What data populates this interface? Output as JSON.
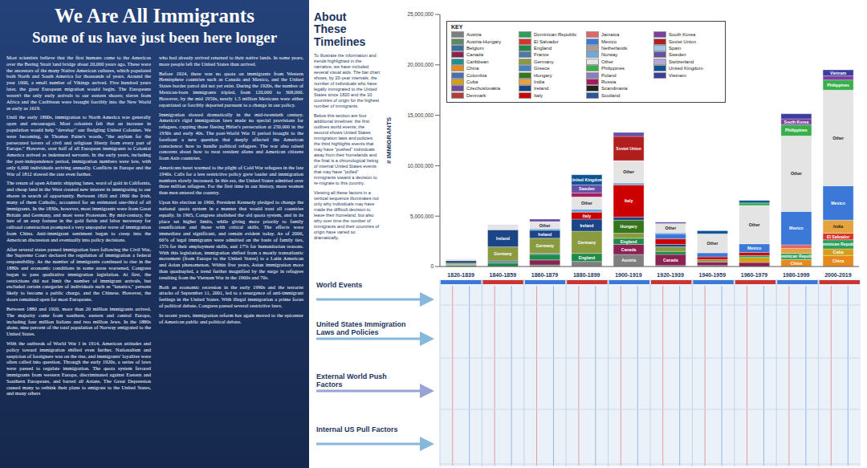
{
  "article": {
    "title": "We Are All Immigrants",
    "subtitle": "Some of us have just been here longer",
    "columns": [
      [
        "Most scientists believe that the first humans came to the Americas over the Bering Strait land bridge about 20,000 years ago. These were the ancestors of the many Native American cultures, which populated both North and South America for thousands of years. Around the year 1000, a small number of Vikings arrived. Five hundred years later, the great European migration would begin. The Europeans weren't the only early arrivals to our eastern shores; slaves from Africa and the Caribbean were brought forcibly into the New World as early as 1619.",
        "Until the early 1800s, immigration to North America was generally open and encouraged. Most colonists felt that an increase in population would help \"develop\" our fledgling United Colonies. We were becoming, in Thomas Paine's words, \"the asylum for the persecuted lovers of civil and religious liberty from every part of Europe.\" However, over half of all European immigrants to Colonial America arrived as indentured servants. In the early years, including the post-independence period, immigration numbers were low, with only 6,000 individuals arriving annually. Conflicts in Europe and the War of 1812 slowed the rate even further.",
        "The return of open Atlantic shipping lanes, word of gold in California, and cheap land in the West created new interest in immigrating to our shores in search of opportunity. Between 1820 and 1860 the Irish, many of them Catholic, accounted for an estimated one-third of all immigrants. In the 1830s, however, most immigrants were from Great Britain and Germany, and most were Protestant. By mid-century, the lure of an easy fortune in the gold fields and labor necessary for railroad construction prompted a very unpopular wave of immigration from China. Anti-immigrant sentiment began to creep into the American discussion and eventually into policy decisions.",
        "After several states passed immigration laws following the Civil War, the Supreme Court declared the regulation of immigration a federal responsibility. As the number of immigrants continued to rise in the 1880s and economic conditions in some areas worsened, Congress began to pass qualitative immigration legislation. At first, the restrictions did not limit the number of immigrant arrivals, but excluded certain categories of individuals such as \"lunatics,\" persons likely to become a public charge, and the Chinese. However, the doors remained open for most Europeans.",
        "Between 1880 and 1920, more than 20 million immigrants arrived. The majority came from southern, eastern and central Europe, including four million Italians and two million Jews. In the 1880s alone, nine percent of the total population of Norway emigrated to the United States.",
        "With the outbreak of World War I in 1914, American attitudes and policy toward immigration shifted even further. Nationalism and suspicion of foreigners was on the rise, and immigrants' loyalties were often called into question. Through the early 1920s, a series of laws were passed to regulate immigration. The quota system favored immigrants from western Europe, discriminated against Eastern and Southern Europeans, and barred all Asians. The Great Depression caused many to rethink their plans to emigrate to the United States, and many others"
      ],
      [
        "who had already arrived returned to their native lands. In some years, more people left the United States than arrived.",
        "Before 1924, there was no quota on immigrants from Western Hemisphere countries such as Canada and Mexico, and the United States border patrol did not yet exist. During the 1920s, the number of Mexican-born immigrants tripled, from 120,000 to 368,000. However, by the mid 1950s, nearly 1.5 million Mexicans were either repatriated or forcibly deported pursuant to a change in our policy.",
        "Immigration slowed dramatically in the mid-twentieth century. America's rigid immigration laws made no special provisions for refugees, capping those fleeing Hitler's persecution at 250,000 in the 1930s and early 40s. The post-World War II period brought to the forefront a new question that deeply affected the American conscience: how to handle political refugees. The war also raised concerns about how to treat resident aliens and American citizens from Axis countries.",
        "Americans heart warmed to the plight of Cold War refugees in the late 1940s. Calls for a less restrictive policy grew louder and immigration numbers slowly increased. In this era, the United States admitted over three million refugees. For the first time in our history, more women than men entered the country.",
        "Upon his election in 1960, President Kennedy pledged to change the national quota system in a manner that would treat all countries equally. In 1965, Congress abolished the old quota system, and in its place set higher limits, while giving more priority to family reunification and those with critical skills. The effects were immediate and significant, and remain evident today. As of 2006, 66% of legal immigrants were admitted on the basis of family ties, 15% for their employment skills, and 17% for humanitarian reasons. With this legislation, immigration shifted from a mostly transatlantic movement (from Europe to the United States) to a Latin American and Asian phenomenon. Within five years, Asian immigration more than quadrupled, a trend further magnified by the surge in refugees resulting from the Vietnam War in the 1960s and 70s.",
        "Both an economic recession in the early 1990s and the terrorist attacks of September 11, 2001, led to a resurgence of anti-immigrant feelings in the United States. With illegal immigration a prime focus of political debate, Congress passed several restrictive laws.",
        "In recent years, immigration reform has again moved to the epicenter of American public and political debate."
      ]
    ]
  },
  "about": {
    "title": "About These Timelines",
    "paragraphs": [
      "To illustrate the information and trends highlighted in the narrative, we have included several visual aids. The bar chart shows, by 20-year intervals, the number of individuals who have legally immigrated to the United States since 1820 and the 10 countries of origin for the highest number of immigrants.",
      "Below this section are four additional timelines: the first outlines world events; the second shows United States immigration laws and policies; the third highlights events that may have \"pushed\" individuals away from their homelands and the final is a chronological listing of internal United States events that may have \"pulled\" immigrants toward a decision to re-migrate to this country.",
      "Viewing all these factors in a vertical sequence illuminates not only why individuals may have made the difficult decision to leave their homeland, but also why over time the number of immigrants and their countries of origin have varied so dramatically."
    ]
  },
  "chart_data": {
    "type": "bar",
    "stacked": true,
    "grid": false,
    "legend_title": "KEY",
    "y_label": "# IMMIGRANTS",
    "categories": [
      "1820-1839",
      "1840-1859",
      "1860-1879",
      "1880-1899",
      "1900-1919",
      "1920-1939",
      "1940-1959",
      "1960-1979",
      "1980-1999",
      "2000-2019"
    ],
    "ylim": [
      0,
      25000000
    ],
    "yticks": [
      0,
      {
        "value": 5000000,
        "label": "5,000,000"
      },
      {
        "value": 10000000,
        "label": "10,000,000"
      },
      {
        "value": 15000000,
        "label": "15,000,000"
      },
      {
        "value": 20000000,
        "label": "20,000,000"
      },
      {
        "value": 25000000,
        "label": "25,000,000"
      }
    ],
    "series": [
      {
        "name": "Austria",
        "color": "#7f7f7f",
        "values": [
          null,
          null,
          null,
          500000,
          1200000,
          100000,
          100000,
          null,
          null,
          null
        ]
      },
      {
        "name": "Austria-Hungary",
        "color": "#5a8a6a",
        "values": [
          null,
          null,
          150000,
          null,
          null,
          null,
          null,
          null,
          null,
          null
        ]
      },
      {
        "name": "Belgium",
        "color": "#3a6e9e",
        "values": [
          null,
          null,
          null,
          null,
          null,
          null,
          null,
          null,
          null,
          null
        ]
      },
      {
        "name": "Canada",
        "color": "#8b2252",
        "values": [
          null,
          null,
          500000,
          null,
          1000000,
          1100000,
          350000,
          400000,
          null,
          null
        ]
      },
      {
        "name": "Caribbean",
        "color": "#1f8f8f",
        "values": [
          null,
          null,
          null,
          null,
          null,
          null,
          null,
          null,
          null,
          null
        ]
      },
      {
        "name": "China",
        "color": "#e8891c",
        "values": [
          null,
          null,
          null,
          null,
          null,
          null,
          null,
          null,
          700000,
          1100000
        ]
      },
      {
        "name": "Colombia",
        "color": "#4b6fb5",
        "values": [
          null,
          null,
          null,
          null,
          null,
          null,
          null,
          null,
          null,
          null
        ]
      },
      {
        "name": "Cuba",
        "color": "#d4a017",
        "values": [
          null,
          null,
          null,
          null,
          null,
          null,
          null,
          500000,
          null,
          650000
        ]
      },
      {
        "name": "Czechoslovakia",
        "color": "#6d4c9f",
        "values": [
          null,
          null,
          null,
          null,
          null,
          null,
          null,
          null,
          null,
          null
        ]
      },
      {
        "name": "Denmark",
        "color": "#b33b3b",
        "values": [
          null,
          null,
          null,
          null,
          null,
          null,
          null,
          null,
          null,
          null
        ]
      },
      {
        "name": "Dominican Republic",
        "color": "#2e9e5b",
        "values": [
          null,
          null,
          null,
          null,
          null,
          null,
          null,
          200000,
          600000,
          900000
        ]
      },
      {
        "name": "El Salvador",
        "color": "#d9342b",
        "values": [
          null,
          null,
          null,
          null,
          null,
          null,
          null,
          null,
          null,
          650000
        ]
      },
      {
        "name": "England",
        "color": "#1f8a4a",
        "values": [
          120000,
          350000,
          550000,
          800000,
          600000,
          300000,
          null,
          null,
          null,
          null
        ]
      },
      {
        "name": "France",
        "color": "#4e79a7",
        "values": [
          60000,
          200000,
          100000,
          null,
          null,
          null,
          null,
          null,
          null,
          null
        ]
      },
      {
        "name": "Germany",
        "color": "#8a9a3f",
        "values": [
          150000,
          1400000,
          1500000,
          2200000,
          500000,
          450000,
          250000,
          null,
          null,
          null
        ]
      },
      {
        "name": "Greece",
        "color": "#3d85c6",
        "values": [
          null,
          null,
          null,
          null,
          null,
          null,
          null,
          null,
          null,
          null
        ]
      },
      {
        "name": "Hungary",
        "color": "#38761d",
        "values": [
          null,
          null,
          null,
          null,
          1300000,
          null,
          null,
          null,
          null,
          null
        ]
      },
      {
        "name": "India",
        "color": "#e6a23c",
        "values": [
          null,
          null,
          null,
          null,
          null,
          null,
          null,
          null,
          500000,
          1300000
        ]
      },
      {
        "name": "Ireland",
        "color": "#1c4587",
        "values": [
          250000,
          1700000,
          800000,
          1200000,
          300000,
          250000,
          null,
          null,
          null,
          null
        ]
      },
      {
        "name": "Italy",
        "color": "#cc0000",
        "values": [
          null,
          null,
          null,
          700000,
          3200000,
          550000,
          250000,
          300000,
          null,
          null
        ]
      },
      {
        "name": "Jamaica",
        "color": "#e06666",
        "values": [
          null,
          null,
          null,
          null,
          null,
          null,
          null,
          null,
          350000,
          null
        ]
      },
      {
        "name": "Mexico",
        "color": "#3c78d8",
        "values": [
          null,
          null,
          null,
          null,
          null,
          500000,
          400000,
          850000,
          3300000,
          3400000
        ]
      },
      {
        "name": "Netherlands",
        "color": "#a0a0a0",
        "values": [
          null,
          20000,
          null,
          null,
          null,
          null,
          null,
          null,
          null,
          null
        ]
      },
      {
        "name": "Norway",
        "color": "#6fa8dc",
        "values": [
          null,
          null,
          150000,
          300000,
          200000,
          100000,
          null,
          null,
          null,
          null
        ]
      },
      {
        "name": "Other",
        "color": "#e4e4e4",
        "values": [
          150000,
          400000,
          700000,
          1200000,
          2200000,
          900000,
          1900000,
          3800000,
          7500000,
          9500000
        ]
      },
      {
        "name": "Philippines",
        "color": "#38b04a",
        "values": [
          null,
          null,
          null,
          null,
          null,
          null,
          null,
          250000,
          1100000,
          1000000
        ]
      },
      {
        "name": "Poland",
        "color": "#8e7cc3",
        "values": [
          null,
          null,
          null,
          null,
          null,
          null,
          null,
          null,
          null,
          null
        ]
      },
      {
        "name": "Russia",
        "color": "#a61c5c",
        "values": [
          null,
          null,
          null,
          400000,
          null,
          null,
          null,
          null,
          null,
          null
        ]
      },
      {
        "name": "Scandinavia",
        "color": "#222222",
        "values": [
          null,
          null,
          null,
          null,
          null,
          null,
          null,
          null,
          null,
          null
        ]
      },
      {
        "name": "Scotland",
        "color": "#2b5797",
        "values": [
          null,
          null,
          null,
          null,
          null,
          null,
          null,
          null,
          null,
          null
        ]
      },
      {
        "name": "South Korea",
        "color": "#7b3fa0",
        "values": [
          null,
          null,
          null,
          null,
          null,
          null,
          null,
          null,
          600000,
          400000
        ]
      },
      {
        "name": "Soviet Union",
        "color": "#b01e1e",
        "values": [
          null,
          null,
          null,
          null,
          2400000,
          null,
          null,
          null,
          null,
          null
        ]
      },
      {
        "name": "Spain",
        "color": "#9fc5e8",
        "values": [
          null,
          null,
          null,
          null,
          null,
          null,
          null,
          null,
          null,
          null
        ]
      },
      {
        "name": "Sweden",
        "color": "#674ea7",
        "values": [
          null,
          null,
          250000,
          800000,
          400000,
          150000,
          null,
          null,
          null,
          null
        ]
      },
      {
        "name": "Switzerland",
        "color": "#b4a7d6",
        "values": [
          null,
          50000,
          null,
          null,
          null,
          null,
          null,
          null,
          null,
          null
        ]
      },
      {
        "name": "United Kingdom",
        "color": "#0b5394",
        "values": [
          null,
          null,
          null,
          1000000,
          null,
          null,
          300000,
          250000,
          null,
          null
        ]
      },
      {
        "name": "Vietnam",
        "color": "#3d3d9e",
        "values": [
          null,
          null,
          null,
          null,
          null,
          null,
          null,
          null,
          500000,
          600000
        ]
      }
    ]
  },
  "timelines": {
    "rows": [
      "World Events",
      "United States Immigration Laws and Policies",
      "External World Push Factors",
      "Internal US Pull Factors"
    ]
  }
}
